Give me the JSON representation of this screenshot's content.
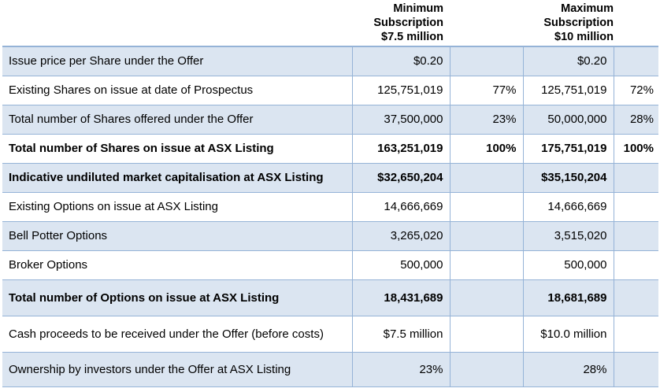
{
  "header": {
    "min_line1": "Minimum",
    "min_line2": "Subscription",
    "min_line3": "$7.5 million",
    "max_line1": "Maximum",
    "max_line2": "Subscription",
    "max_line3": "$10 million"
  },
  "rows": [
    {
      "label": "Issue price per Share under the Offer",
      "min_value": "$0.20",
      "min_pct": "",
      "max_value": "$0.20",
      "max_pct": ""
    },
    {
      "label": "Existing Shares on issue at date of Prospectus",
      "min_value": "125,751,019",
      "min_pct": "77%",
      "max_value": "125,751,019",
      "max_pct": "72%"
    },
    {
      "label": "Total number of Shares offered under the Offer",
      "min_value": "37,500,000",
      "min_pct": "23%",
      "max_value": "50,000,000",
      "max_pct": "28%"
    },
    {
      "label": "Total number of Shares on issue at ASX Listing",
      "min_value": "163,251,019",
      "min_pct": "100%",
      "max_value": "175,751,019",
      "max_pct": "100%"
    },
    {
      "label": "Indicative undiluted market capitalisation at ASX Listing",
      "min_value": "$32,650,204",
      "min_pct": "",
      "max_value": "$35,150,204",
      "max_pct": ""
    },
    {
      "label": "Existing Options on issue at ASX Listing",
      "min_value": "14,666,669",
      "min_pct": "",
      "max_value": "14,666,669",
      "max_pct": ""
    },
    {
      "label": "Bell Potter Options",
      "min_value": "3,265,020",
      "min_pct": "",
      "max_value": "3,515,020",
      "max_pct": ""
    },
    {
      "label": "Broker Options",
      "min_value": "500,000",
      "min_pct": "",
      "max_value": "500,000",
      "max_pct": ""
    },
    {
      "label": "Total number of Options on issue at ASX Listing",
      "min_value": "18,431,689",
      "min_pct": "",
      "max_value": "18,681,689",
      "max_pct": ""
    },
    {
      "label": "Cash proceeds to be received under the Offer (before costs)",
      "min_value": "$7.5 million",
      "min_pct": "",
      "max_value": "$10.0 million",
      "max_pct": ""
    },
    {
      "label": "Ownership by investors under the Offer at ASX Listing",
      "min_value": "23%",
      "min_pct": "",
      "max_value": "28%",
      "max_pct": ""
    }
  ]
}
